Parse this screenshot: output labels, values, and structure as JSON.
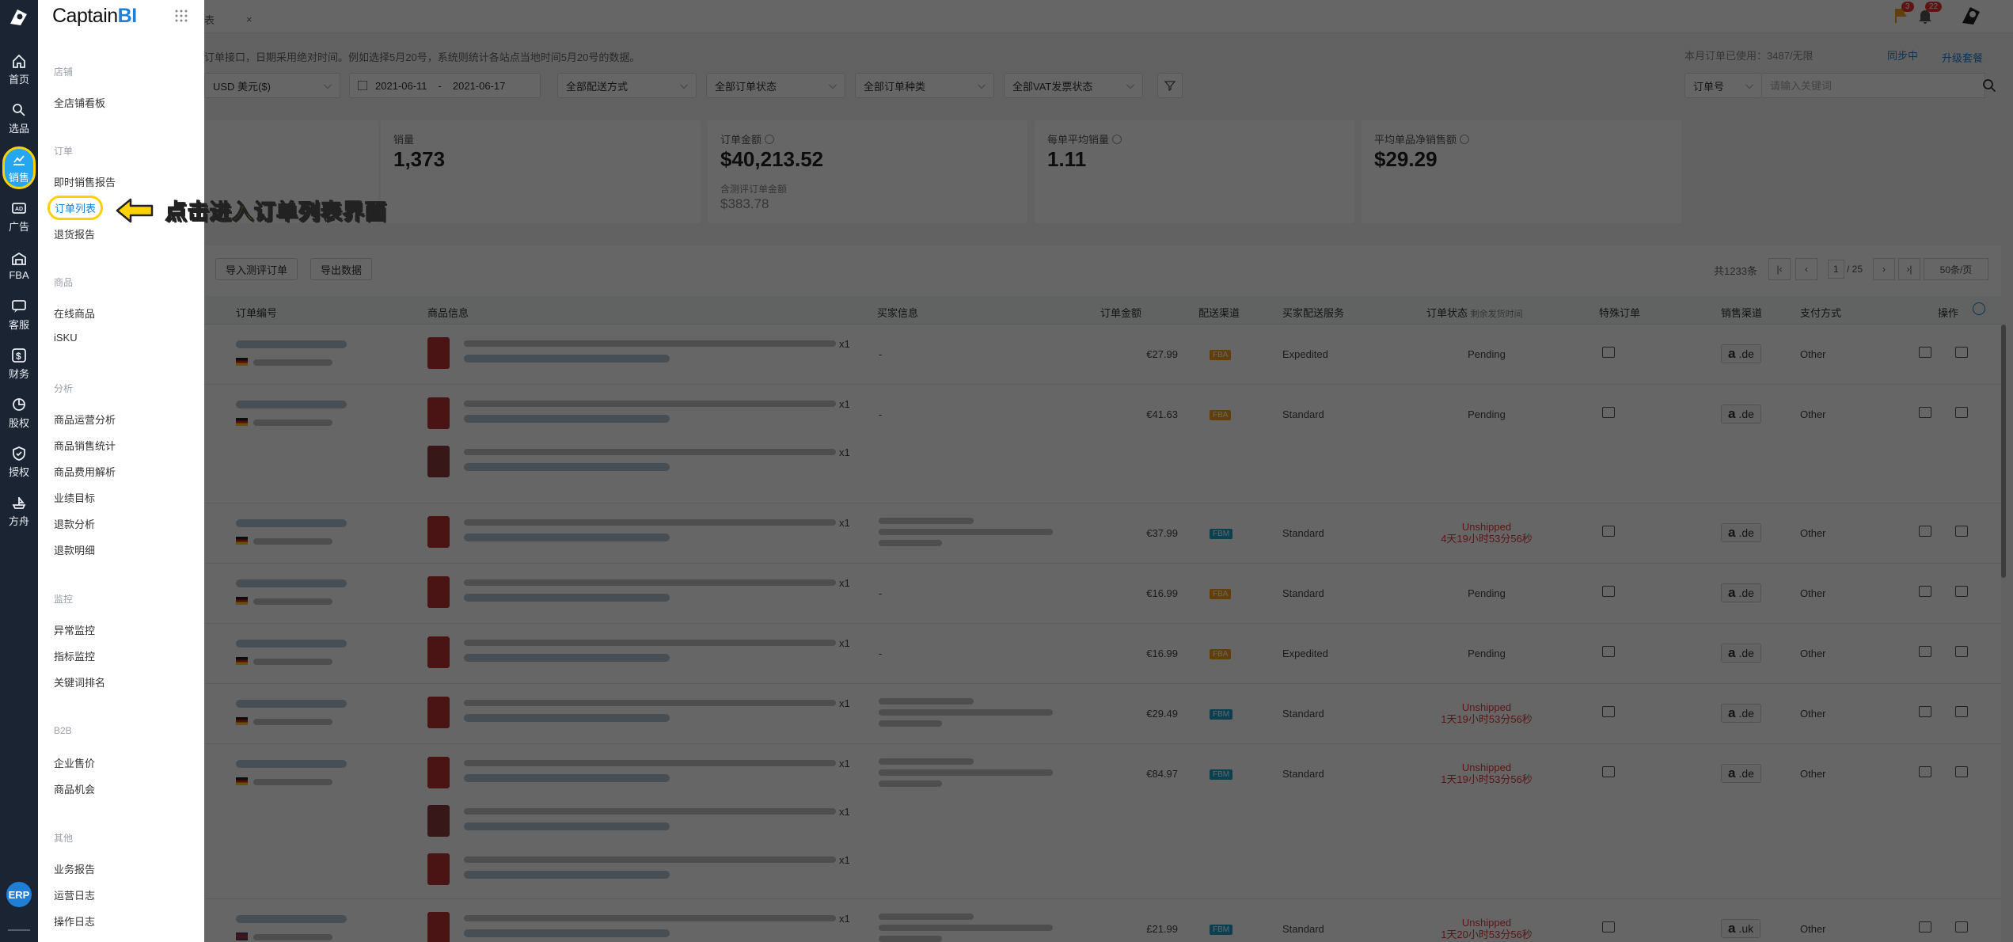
{
  "brand": {
    "name": "Captain",
    "suffix": "BI"
  },
  "rail": [
    {
      "label": "首页",
      "icon": "home-icon"
    },
    {
      "label": "选品",
      "icon": "search-icon"
    },
    {
      "label": "销售",
      "icon": "chart-icon",
      "active": true
    },
    {
      "label": "广告",
      "icon": "ad-icon"
    },
    {
      "label": "FBA",
      "icon": "warehouse-icon"
    },
    {
      "label": "客服",
      "icon": "chat-icon"
    },
    {
      "label": "财务",
      "icon": "dollar-icon"
    },
    {
      "label": "股权",
      "icon": "pie-icon"
    },
    {
      "label": "授权",
      "icon": "shield-icon"
    },
    {
      "label": "方舟",
      "icon": "ark-icon"
    }
  ],
  "erp_label": "ERP",
  "menu": {
    "sections": [
      {
        "title": "店铺",
        "items": [
          "全店铺看板"
        ]
      },
      {
        "title": "订单",
        "items": [
          "即时销售报告",
          "订单列表",
          "退货报告"
        ]
      },
      {
        "title": "商品",
        "items": [
          "在线商品",
          "iSKU"
        ]
      },
      {
        "title": "分析",
        "items": [
          "商品运营分析",
          "商品销售统计",
          "商品费用解析",
          "业绩目标",
          "退款分析",
          "退款明细"
        ]
      },
      {
        "title": "监控",
        "items": [
          "异常监控",
          "指标监控",
          "关键词排名"
        ]
      },
      {
        "title": "B2B",
        "items": [
          "企业售价",
          "商品机会"
        ]
      },
      {
        "title": "其他",
        "items": [
          "业务报告",
          "运营日志",
          "操作日志"
        ]
      }
    ],
    "active_item": "订单列表"
  },
  "callout": "点击进入订单列表界面",
  "topbar": {
    "tab_label": "表",
    "tab_close": "×",
    "flag_badge": "3",
    "bell_badge": "22"
  },
  "notice": "订单接口，日期采用绝对时间。例如选择5月20号，系统则统计各站点当地时间5月20号的数据。",
  "order_total": "本月订单已使用：3487/无限",
  "sync": "同步中",
  "upgrade": "升级套餐",
  "filters": {
    "currency": "USD 美元($)",
    "date_start": "2021-06-11",
    "date_sep": "-",
    "date_end": "2021-06-17",
    "delivery": "全部配送方式",
    "status": "全部订单状态",
    "kind": "全部订单种类",
    "vat": "全部VAT发票状态",
    "search_field": "订单号",
    "search_placeholder": "请输入关键词"
  },
  "cards": [
    {
      "label": "销量",
      "value": "1,373"
    },
    {
      "label": "订单金额",
      "value": "$40,213.52",
      "sub_label": "含测评订单金额",
      "sub_value": "$383.78"
    },
    {
      "label": "每单平均销量",
      "value": "1.11"
    },
    {
      "label": "平均单品净销售额",
      "value": "$29.29"
    }
  ],
  "actions": {
    "import": "导入测评订单",
    "export": "导出数据"
  },
  "pagination": {
    "total": "共1233条",
    "page": "1",
    "pages": "/ 25",
    "per_page": "50条/页"
  },
  "columns": [
    "订单编号",
    "商品信息",
    "买家信息",
    "订单金额",
    "配送渠道",
    "买家配送服务",
    "订单状态",
    "剩余发货时间",
    "特殊订单",
    "销售渠道",
    "支付方式",
    "操作"
  ],
  "rows": [
    {
      "qty": "x1",
      "buyer": "-",
      "amount": "€27.99",
      "channel": "FBA",
      "service": "Expedited",
      "status": "Pending",
      "status2": "",
      "market": "de",
      "pay": "Other",
      "flag": "de"
    },
    {
      "qty": "x1",
      "qty2": "x1",
      "buyer": "-",
      "amount": "€41.63",
      "channel": "FBA",
      "service": "Standard",
      "status": "Pending",
      "status2": "",
      "market": "de",
      "pay": "Other",
      "flag": "de"
    },
    {
      "qty": "x1",
      "buyer": "",
      "amount": "€37.99",
      "channel": "FBM",
      "service": "Standard",
      "status": "Unshipped",
      "status2": "4天19小时53分56秒",
      "market": "de",
      "pay": "Other",
      "flag": "de"
    },
    {
      "qty": "x1",
      "buyer": "-",
      "amount": "€16.99",
      "channel": "FBA",
      "service": "Standard",
      "status": "Pending",
      "status2": "",
      "market": "de",
      "pay": "Other",
      "flag": "de"
    },
    {
      "qty": "x1",
      "buyer": "-",
      "amount": "€16.99",
      "channel": "FBA",
      "service": "Expedited",
      "status": "Pending",
      "status2": "",
      "market": "de",
      "pay": "Other",
      "flag": "de"
    },
    {
      "qty": "x1",
      "buyer": "",
      "amount": "€29.49",
      "channel": "FBM",
      "service": "Standard",
      "status": "Unshipped",
      "status2": "1天19小时53分56秒",
      "market": "de",
      "pay": "Other",
      "flag": "de"
    },
    {
      "qty": "x1",
      "qty2": "x1",
      "qty3": "x1",
      "buyer": "",
      "amount": "€84.97",
      "channel": "FBM",
      "service": "Standard",
      "status": "Unshipped",
      "status2": "1天19小时53分56秒",
      "market": "de",
      "pay": "Other",
      "flag": "de"
    },
    {
      "qty": "x1",
      "buyer": "",
      "amount": "£21.99",
      "channel": "FBM",
      "service": "Standard",
      "status": "Unshipped",
      "status2": "1天20小时53分56秒",
      "market": "uk",
      "pay": "Other",
      "flag": "uk"
    }
  ],
  "market_prefix": "a",
  "colors": {
    "accent": "#1f7fd6",
    "highlight": "#ffd000",
    "rail": "#1b2433",
    "fba": "#f59d1a",
    "fbm": "#1ba0c6",
    "red": "#e03a3a"
  }
}
